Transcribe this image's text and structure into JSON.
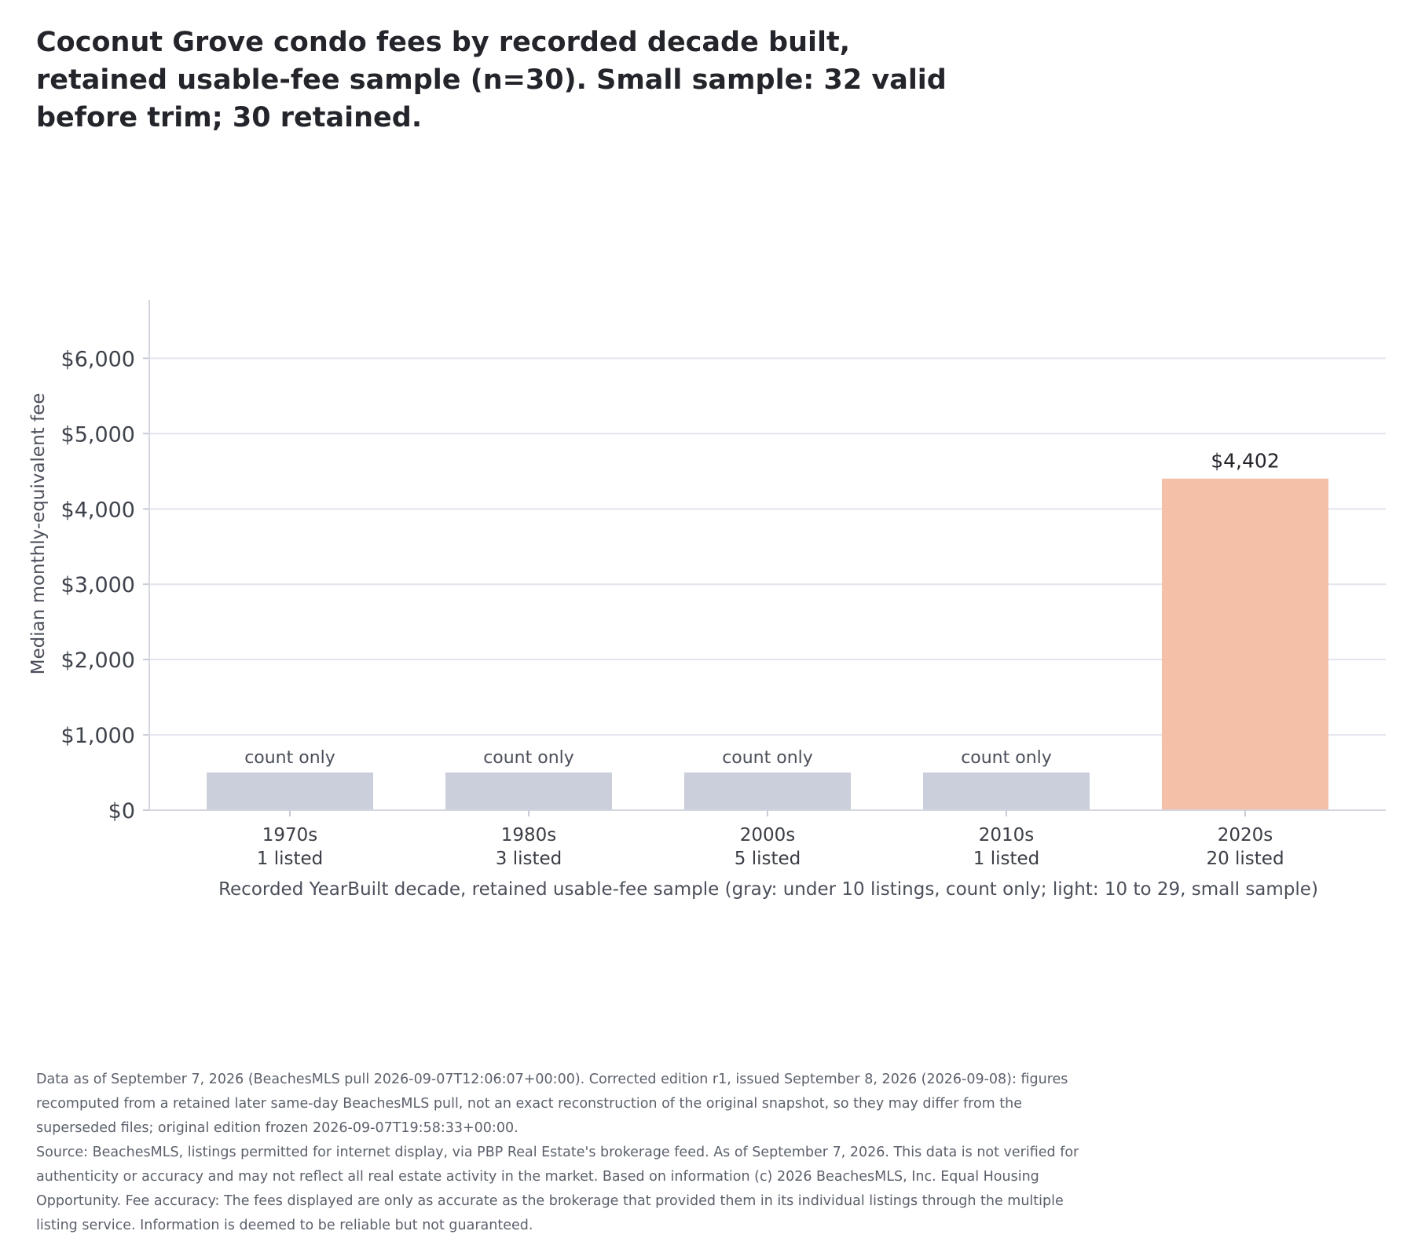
{
  "title": "Coconut Grove condo fees by recorded decade built, retained usable-fee sample (n=30). Small sample: 32 valid before trim; 30 retained.",
  "chart_data": {
    "type": "bar",
    "categories": [
      "1970s",
      "1980s",
      "2000s",
      "2010s",
      "2020s"
    ],
    "category_counts": [
      "1 listed",
      "3 listed",
      "5 listed",
      "1 listed",
      "20 listed"
    ],
    "bar_labels": [
      "count only",
      "count only",
      "count only",
      "count only",
      "$4,402"
    ],
    "values": [
      null,
      null,
      null,
      null,
      4402
    ],
    "placeholder_value": 500,
    "bar_colors": [
      "#cbcfdc",
      "#cbcfdc",
      "#cbcfdc",
      "#cbcfdc",
      "#f4c1a8"
    ],
    "ylabel": "Median monthly-equivalent fee",
    "xlabel": "Recorded YearBuilt decade, retained usable-fee sample (gray: under 10 listings, count only; light: 10 to 29, small sample)",
    "yticks": [
      0,
      1000,
      2000,
      3000,
      4000,
      5000,
      6000
    ],
    "ytick_labels": [
      "$0",
      "$1,000",
      "$2,000",
      "$3,000",
      "$4,000",
      "$5,000",
      "$6,000"
    ],
    "ylim": [
      0,
      6400
    ],
    "grid": true
  },
  "footer": {
    "data_note": "Data as of September 7, 2026 (BeachesMLS pull 2026-09-07T12:06:07+00:00). Corrected edition r1, issued September 8, 2026 (2026-09-08): figures recomputed from a retained later same-day BeachesMLS pull, not an exact reconstruction of the original snapshot, so they may differ from the superseded files; original edition frozen 2026-09-07T19:58:33+00:00.",
    "source_note": "Source: BeachesMLS, listings permitted for internet display, via PBP Real Estate's brokerage feed. As of September 7, 2026. This data is not verified for authenticity or accuracy and may not reflect all real estate activity in the market. Based on information (c) 2026 BeachesMLS, Inc. Equal Housing Opportunity. Fee accuracy: The fees displayed are only as accurate as the brokerage that provided them in its individual listings through the multiple listing service. Information is deemed to be reliable but not guaranteed."
  }
}
